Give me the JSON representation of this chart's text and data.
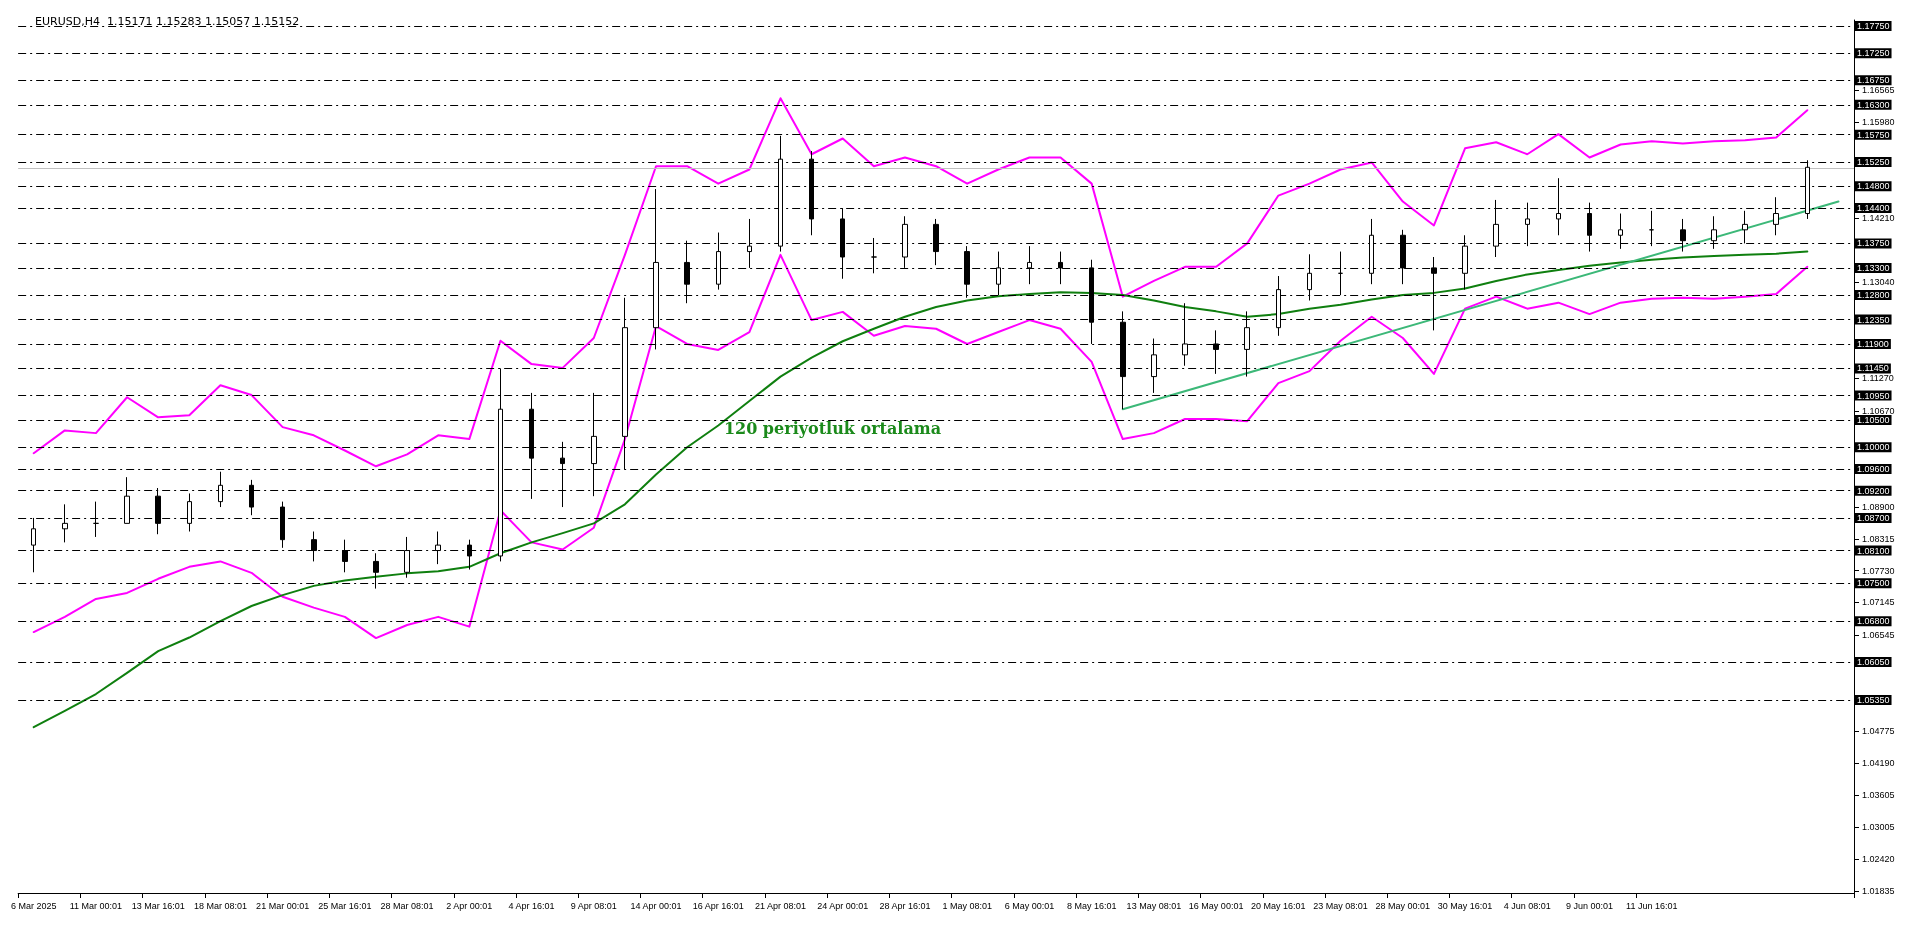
{
  "chart_data": {
    "type": "candlestick",
    "title": "EURUSD,H4  1.15171 1.15283 1.15057 1.15152",
    "categories": [
      "6 Mar 2025",
      null,
      "11 Mar 00:01",
      null,
      "13 Mar 16:01",
      null,
      "18 Mar 08:01",
      null,
      "21 Mar 00:01",
      null,
      "25 Mar 16:01",
      null,
      "28 Mar 08:01",
      null,
      "2 Apr 00:01",
      null,
      "4 Apr 16:01",
      null,
      "9 Apr 08:01",
      null,
      "14 Apr 00:01",
      null,
      "16 Apr 16:01",
      null,
      "21 Apr 08:01",
      null,
      "24 Apr 00:01",
      null,
      "28 Apr 16:01",
      null,
      "1 May 08:01",
      null,
      "6 May 00:01",
      null,
      "8 May 16:01",
      null,
      "13 May 08:01",
      null,
      "16 May 00:01",
      null,
      "20 May 16:01",
      null,
      "23 May 08:01",
      null,
      "28 May 00:01",
      null,
      "30 May 16:01",
      null,
      "4 Jun 08:01",
      null,
      "9 Jun 00:01",
      null,
      "11 Jun 16:01",
      null,
      null,
      null,
      null,
      null,
      null
    ],
    "ohlc": [
      [
        1.082,
        1.087,
        1.077,
        1.085
      ],
      [
        1.085,
        1.0895,
        1.0825,
        1.086
      ],
      [
        1.086,
        1.09,
        1.0835,
        1.086
      ],
      [
        1.086,
        1.0945,
        1.086,
        1.091
      ],
      [
        1.091,
        1.0925,
        1.084,
        1.086
      ],
      [
        1.086,
        1.0915,
        1.0845,
        1.09
      ],
      [
        1.09,
        1.0955,
        1.089,
        1.093
      ],
      [
        1.093,
        1.094,
        1.0875,
        1.089
      ],
      [
        1.089,
        1.09,
        1.0815,
        1.083
      ],
      [
        1.083,
        1.0845,
        1.079,
        1.081
      ],
      [
        1.081,
        1.083,
        1.077,
        1.079
      ],
      [
        1.079,
        1.0805,
        1.074,
        1.077
      ],
      [
        1.077,
        1.0835,
        1.076,
        1.081
      ],
      [
        1.081,
        1.0845,
        1.0785,
        1.082
      ],
      [
        1.082,
        1.083,
        1.0775,
        1.08
      ],
      [
        1.08,
        1.1145,
        1.079,
        1.107
      ],
      [
        1.107,
        1.11,
        1.0905,
        1.098
      ],
      [
        1.098,
        1.101,
        1.089,
        1.097
      ],
      [
        1.097,
        1.11,
        1.091,
        1.102
      ],
      [
        1.102,
        1.1275,
        1.096,
        1.122
      ],
      [
        1.122,
        1.1475,
        1.118,
        1.134
      ],
      [
        1.134,
        1.138,
        1.1265,
        1.13
      ],
      [
        1.13,
        1.1395,
        1.129,
        1.136
      ],
      [
        1.136,
        1.142,
        1.133,
        1.137
      ],
      [
        1.137,
        1.1573,
        1.136,
        1.153
      ],
      [
        1.153,
        1.1545,
        1.139,
        1.142
      ],
      [
        1.142,
        1.144,
        1.131,
        1.135
      ],
      [
        1.135,
        1.1385,
        1.132,
        1.135
      ],
      [
        1.135,
        1.1425,
        1.133,
        1.141
      ],
      [
        1.141,
        1.142,
        1.1335,
        1.136
      ],
      [
        1.136,
        1.137,
        1.1275,
        1.13
      ],
      [
        1.13,
        1.136,
        1.128,
        1.133
      ],
      [
        1.133,
        1.137,
        1.13,
        1.134
      ],
      [
        1.134,
        1.136,
        1.13,
        1.133
      ],
      [
        1.133,
        1.1345,
        1.119,
        1.123
      ],
      [
        1.123,
        1.125,
        1.107,
        1.113
      ],
      [
        1.113,
        1.12,
        1.11,
        1.117
      ],
      [
        1.117,
        1.1265,
        1.115,
        1.119
      ],
      [
        1.119,
        1.1215,
        1.1135,
        1.118
      ],
      [
        1.118,
        1.125,
        1.113,
        1.122
      ],
      [
        1.122,
        1.1315,
        1.1205,
        1.129
      ],
      [
        1.129,
        1.1355,
        1.127,
        1.132
      ],
      [
        1.132,
        1.136,
        1.128,
        1.132
      ],
      [
        1.132,
        1.142,
        1.13,
        1.139
      ],
      [
        1.139,
        1.14,
        1.13,
        1.133
      ],
      [
        1.133,
        1.135,
        1.1215,
        1.132
      ],
      [
        1.132,
        1.139,
        1.129,
        1.137
      ],
      [
        1.137,
        1.1455,
        1.135,
        1.141
      ],
      [
        1.141,
        1.145,
        1.137,
        1.142
      ],
      [
        1.142,
        1.1495,
        1.139,
        1.143
      ],
      [
        1.143,
        1.145,
        1.136,
        1.139
      ],
      [
        1.139,
        1.143,
        1.1365,
        1.14
      ],
      [
        1.14,
        1.1435,
        1.137,
        1.14
      ],
      [
        1.14,
        1.142,
        1.136,
        1.138
      ],
      [
        1.138,
        1.1425,
        1.1365,
        1.14
      ],
      [
        1.14,
        1.1435,
        1.1375,
        1.141
      ],
      [
        1.141,
        1.146,
        1.139,
        1.143
      ],
      [
        1.143,
        1.1528,
        1.142,
        1.1515
      ],
      null
    ],
    "color": "#000000",
    "series": [
      {
        "type": "line",
        "color": "#ff00ff",
        "values": [
          1.0989,
          1.1031,
          1.1026,
          1.1092,
          1.1055,
          1.1059,
          1.1114,
          1.1096,
          1.1037,
          1.1022,
          1.0994,
          1.0965,
          1.0987,
          1.1022,
          1.1015,
          1.1196,
          1.1153,
          1.1146,
          1.1201,
          1.1354,
          1.1517,
          1.1517,
          1.1485,
          1.1511,
          1.1642,
          1.1539,
          1.1568,
          1.1517,
          1.1533,
          1.1517,
          1.1485,
          1.1511,
          1.1533,
          1.1533,
          1.1485,
          1.1277,
          1.1306,
          1.1332,
          1.1332,
          1.1375,
          1.1463,
          1.1485,
          1.1511,
          1.1524,
          1.1452,
          1.1408,
          1.155,
          1.1561,
          1.1539,
          1.1576,
          1.1533,
          1.1557,
          1.1563,
          1.1559,
          1.1563,
          1.1565,
          1.157,
          1.162,
          null
        ]
      },
      {
        "type": "line",
        "color": "#ff00ff",
        "values": [
          1.066,
          1.0688,
          1.0721,
          1.0732,
          1.0758,
          1.078,
          1.079,
          1.0769,
          1.0725,
          1.0705,
          1.0688,
          1.0649,
          1.0673,
          1.0688,
          1.067,
          1.0884,
          1.0825,
          1.0812,
          1.0852,
          1.1015,
          1.1223,
          1.119,
          1.1179,
          1.1212,
          1.1354,
          1.1234,
          1.1249,
          1.1205,
          1.1223,
          1.1218,
          1.119,
          1.1212,
          1.1234,
          1.1218,
          1.1157,
          1.1015,
          1.1026,
          1.1052,
          1.1052,
          1.1048,
          1.1118,
          1.114,
          1.1196,
          1.124,
          1.1201,
          1.1135,
          1.1255,
          1.1277,
          1.1255,
          1.1266,
          1.1245,
          1.1266,
          1.1273,
          1.1275,
          1.1273,
          1.1277,
          1.1282,
          1.1332,
          null
        ]
      },
      {
        "type": "line",
        "color": "#0f7f0f",
        "values": [
          1.0485,
          1.0515,
          1.0546,
          1.0585,
          1.0625,
          1.065,
          1.068,
          1.0708,
          1.0728,
          1.0745,
          1.0755,
          1.0762,
          1.0768,
          1.0772,
          1.078,
          1.0805,
          1.0825,
          1.0842,
          1.086,
          1.0895,
          1.095,
          1.1,
          1.104,
          1.1085,
          1.113,
          1.1165,
          1.1195,
          1.1218,
          1.124,
          1.1258,
          1.127,
          1.1278,
          1.1282,
          1.1285,
          1.1284,
          1.128,
          1.127,
          1.1258,
          1.125,
          1.124,
          1.1245,
          1.1255,
          1.1262,
          1.1272,
          1.128,
          1.1284,
          1.1292,
          1.1306,
          1.1318,
          1.1326,
          1.1334,
          1.134,
          1.1345,
          1.1349,
          1.1352,
          1.1354,
          1.1356,
          1.136,
          null
        ]
      },
      {
        "type": "line",
        "color": "#3cb878",
        "values": [
          null,
          null,
          null,
          null,
          null,
          null,
          null,
          null,
          null,
          null,
          null,
          null,
          null,
          null,
          null,
          null,
          null,
          null,
          null,
          null,
          null,
          null,
          null,
          null,
          null,
          null,
          null,
          null,
          null,
          null,
          null,
          null,
          null,
          null,
          null,
          1.107,
          null,
          null,
          null,
          null,
          null,
          null,
          null,
          null,
          null,
          null,
          null,
          null,
          null,
          null,
          null,
          null,
          null,
          null,
          null,
          null,
          null,
          null,
          1.1452
        ]
      }
    ],
    "ylim": [
      1.018,
      1.1786
    ],
    "yticks": [
      1.16565,
      {
        "value": 1.1598,
        "label": "1.15980"
      },
      {
        "value": 1.1421,
        "label": "1.14210"
      },
      {
        "value": 1.1304,
        "label": "1.13040"
      },
      {
        "value": 1.1127,
        "label": "1.11270"
      },
      {
        "value": 1.1067,
        "label": "1.10670"
      },
      {
        "value": 1.089,
        "label": "1.08900"
      },
      1.08315,
      {
        "value": 1.0773,
        "label": "1.07730"
      },
      1.07145,
      1.06545,
      1.04775,
      {
        "value": 1.0419,
        "label": "1.04190"
      },
      1.03605,
      1.03005,
      {
        "value": 1.0242,
        "label": "1.02420"
      },
      1.01835
    ],
    "ref_lines": [
      {
        "axis": "y",
        "value": 1.1775,
        "label": "1.17750"
      },
      {
        "axis": "y",
        "value": 1.1725,
        "label": "1.17250"
      },
      {
        "axis": "y",
        "value": 1.1675,
        "label": "1.16750"
      },
      {
        "axis": "y",
        "value": 1.163,
        "label": "1.16300"
      },
      {
        "axis": "y",
        "value": 1.1575,
        "label": "1.15750"
      },
      {
        "axis": "y",
        "value": 1.1525,
        "label": "1.15250"
      },
      {
        "axis": "y",
        "value": 1.148,
        "label": "1.14800"
      },
      {
        "axis": "y",
        "value": 1.144,
        "label": "1.14400"
      },
      {
        "axis": "y",
        "value": 1.1375,
        "label": "1.13750"
      },
      {
        "axis": "y",
        "value": 1.133,
        "label": "1.13300"
      },
      {
        "axis": "y",
        "value": 1.128,
        "label": "1.12800"
      },
      {
        "axis": "y",
        "value": 1.1235,
        "label": "1.12350"
      },
      {
        "axis": "y",
        "value": 1.119,
        "label": "1.11900"
      },
      {
        "axis": "y",
        "value": 1.1145,
        "label": "1.11450"
      },
      {
        "axis": "y",
        "value": 1.1095,
        "label": "1.10950"
      },
      {
        "axis": "y",
        "value": 1.105,
        "label": "1.10500"
      },
      {
        "axis": "y",
        "value": 1.1,
        "label": "1.10000"
      },
      {
        "axis": "y",
        "value": 1.096,
        "label": "1.09600"
      },
      {
        "axis": "y",
        "value": 1.092,
        "label": "1.09200"
      },
      {
        "axis": "y",
        "value": 1.087,
        "label": "1.08700"
      },
      {
        "axis": "y",
        "value": 1.081,
        "label": "1.08100"
      },
      {
        "axis": "y",
        "value": 1.075,
        "label": "1.07500"
      },
      {
        "axis": "y",
        "value": 1.068,
        "label": "1.06800"
      },
      {
        "axis": "y",
        "value": 1.0605,
        "label": "1.06050"
      },
      {
        "axis": "y",
        "value": 1.0535,
        "label": "1.05350"
      },
      {
        "axis": "y",
        "value": 1.15132,
        "color": "#c0c0c0",
        "line_style": "solid"
      }
    ],
    "annotations": [
      "120 periyotluk ortalama"
    ],
    "grid": false
  }
}
